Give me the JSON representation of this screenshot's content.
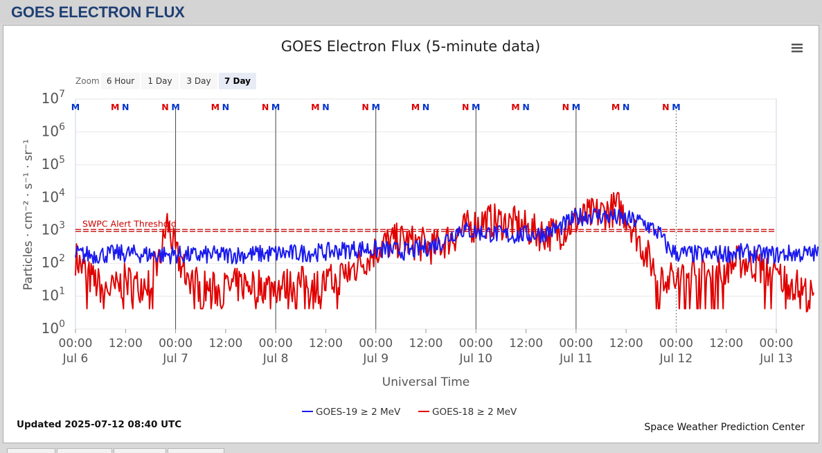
{
  "header": {
    "title": "GOES ELECTRON FLUX"
  },
  "zoom": {
    "label": "Zoom",
    "buttons": [
      "6 Hour",
      "1 Day",
      "3 Day",
      "7 Day"
    ],
    "selected": "7 Day"
  },
  "footer": {
    "updated": "Updated 2025-07-12 08:40 UTC",
    "credit": "Space Weather Prediction Center"
  },
  "chart_data": {
    "type": "line",
    "title": "GOES Electron Flux (5-minute data)",
    "xlabel": "Universal Time",
    "ylabel": "Particles · cm⁻² · s⁻¹ · sr⁻¹",
    "y_scale": "log",
    "ylim": [
      1,
      10000000
    ],
    "y_ticks": [
      {
        "base": "10",
        "exp": "0",
        "value": 1
      },
      {
        "base": "10",
        "exp": "1",
        "value": 10
      },
      {
        "base": "10",
        "exp": "2",
        "value": 100
      },
      {
        "base": "10",
        "exp": "3",
        "value": 1000
      },
      {
        "base": "10",
        "exp": "4",
        "value": 10000
      },
      {
        "base": "10",
        "exp": "5",
        "value": 100000
      },
      {
        "base": "10",
        "exp": "6",
        "value": 1000000
      },
      {
        "base": "10",
        "exp": "7",
        "value": 10000000
      }
    ],
    "xlim": [
      "2025-07-06 00:00",
      "2025-07-13 00:00"
    ],
    "x_ticks": [
      {
        "time": "00:00",
        "date": "Jul 6"
      },
      {
        "time": "12:00",
        "date": ""
      },
      {
        "time": "00:00",
        "date": "Jul 7"
      },
      {
        "time": "12:00",
        "date": ""
      },
      {
        "time": "00:00",
        "date": "Jul 8"
      },
      {
        "time": "12:00",
        "date": ""
      },
      {
        "time": "00:00",
        "date": "Jul 9"
      },
      {
        "time": "12:00",
        "date": ""
      },
      {
        "time": "00:00",
        "date": "Jul 10"
      },
      {
        "time": "12:00",
        "date": ""
      },
      {
        "time": "00:00",
        "date": "Jul 11"
      },
      {
        "time": "12:00",
        "date": ""
      },
      {
        "time": "00:00",
        "date": "Jul 12"
      },
      {
        "time": "12:00",
        "date": ""
      },
      {
        "time": "00:00",
        "date": "Jul 13"
      }
    ],
    "threshold": {
      "label": "SWPC Alert Threshold",
      "value": 1000,
      "color": "#cc0000"
    },
    "grid": true,
    "legend": "bottom-center",
    "series": [
      {
        "name": "GOES-19 ≥ 2 MeV",
        "color": "#1a1aee",
        "x_hours": [
          0,
          4,
          8,
          12,
          16,
          20,
          24,
          28,
          32,
          36,
          40,
          44,
          48,
          52,
          56,
          60,
          64,
          68,
          72,
          76,
          80,
          84,
          88,
          92,
          96,
          100,
          104,
          108,
          112,
          116,
          120,
          124,
          128,
          132,
          136,
          140,
          142,
          144,
          148,
          152,
          156,
          160,
          164,
          168,
          172,
          176,
          178
        ],
        "values": [
          190,
          180,
          190,
          200,
          190,
          180,
          185,
          170,
          180,
          180,
          185,
          190,
          200,
          200,
          210,
          220,
          250,
          280,
          260,
          250,
          230,
          300,
          450,
          1100,
          900,
          800,
          700,
          750,
          800,
          1200,
          2500,
          3000,
          2600,
          2200,
          1800,
          800,
          300,
          200,
          190,
          180,
          200,
          210,
          190,
          180,
          200,
          190,
          210
        ],
        "noise": 0.28
      },
      {
        "name": "GOES-18 ≥ 2 MeV",
        "color": "#e00000",
        "x_hours": [
          0,
          3,
          6,
          9,
          12,
          15,
          18,
          20,
          21,
          22,
          24,
          26,
          30,
          34,
          38,
          42,
          46,
          50,
          54,
          58,
          62,
          66,
          70,
          74,
          78,
          82,
          86,
          90,
          94,
          98,
          102,
          106,
          110,
          112,
          114,
          116,
          118,
          120,
          122,
          124,
          126,
          128,
          130,
          132,
          134,
          136,
          138,
          140,
          142,
          144,
          148,
          152,
          156,
          160,
          164,
          168,
          172,
          176,
          177
        ],
        "values": [
          150,
          40,
          20,
          15,
          30,
          20,
          40,
          100,
          400,
          1800,
          200,
          60,
          20,
          15,
          20,
          25,
          20,
          20,
          25,
          20,
          30,
          60,
          150,
          400,
          500,
          400,
          300,
          600,
          1200,
          2000,
          1800,
          1500,
          900,
          800,
          800,
          900,
          1300,
          2000,
          2500,
          3000,
          3500,
          4000,
          5000,
          3000,
          1000,
          300,
          100,
          50,
          40,
          30,
          60,
          50,
          80,
          120,
          80,
          40,
          25,
          10,
          8
        ],
        "noise": 0.55
      }
    ],
    "satellite_markers": {
      "labels": [
        "M",
        "N"
      ],
      "colors": {
        "M": "#0000cc",
        "N": "#dd0000"
      },
      "red": [
        {
          "label": "M",
          "hour": 9.5
        },
        {
          "label": "N",
          "hour": 21.5
        },
        {
          "label": "M",
          "hour": 33.5
        },
        {
          "label": "N",
          "hour": 45.5
        },
        {
          "label": "M",
          "hour": 57.5
        },
        {
          "label": "N",
          "hour": 69.5
        },
        {
          "label": "M",
          "hour": 81.5
        },
        {
          "label": "N",
          "hour": 93.5
        },
        {
          "label": "M",
          "hour": 105.5
        },
        {
          "label": "N",
          "hour": 117.5
        },
        {
          "label": "M",
          "hour": 129.5
        },
        {
          "label": "N",
          "hour": 141.5
        }
      ],
      "blue": [
        {
          "label": "M",
          "hour": 0
        },
        {
          "label": "N",
          "hour": 12
        },
        {
          "label": "M",
          "hour": 24
        },
        {
          "label": "N",
          "hour": 36
        },
        {
          "label": "M",
          "hour": 48
        },
        {
          "label": "N",
          "hour": 60
        },
        {
          "label": "M",
          "hour": 72
        },
        {
          "label": "N",
          "hour": 84
        },
        {
          "label": "M",
          "hour": 96
        },
        {
          "label": "N",
          "hour": 108
        },
        {
          "label": "M",
          "hour": 120
        },
        {
          "label": "N",
          "hour": 132
        },
        {
          "label": "M",
          "hour": 144
        }
      ]
    },
    "current_time_hour": 144
  }
}
